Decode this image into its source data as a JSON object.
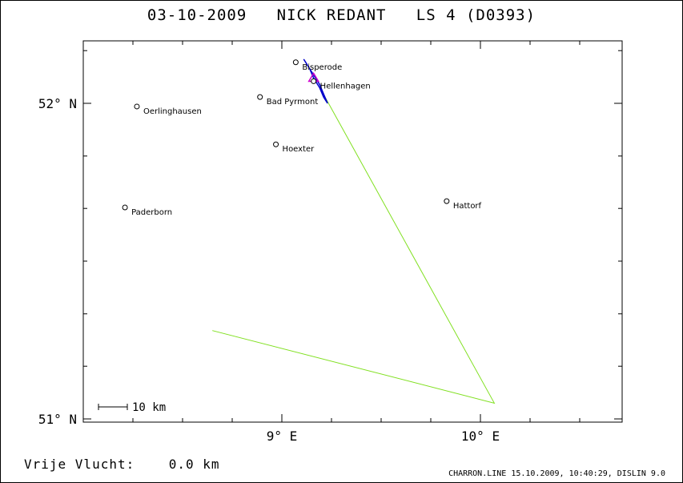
{
  "header": {
    "date": "03-10-2009",
    "pilot": "NICK REDANT",
    "glider": "LS 4 (D0393)"
  },
  "axes": {
    "x_ticks": [
      {
        "value": 9,
        "label": "9° E"
      },
      {
        "value": 10,
        "label": "10° E"
      }
    ],
    "y_ticks": [
      {
        "value": 52,
        "label": "52° N"
      },
      {
        "value": 51,
        "label": "51° N"
      }
    ],
    "x_range": [
      8.0,
      10.7
    ],
    "y_range": [
      51.0,
      52.2
    ]
  },
  "places": [
    {
      "name": "Oerlinghausen",
      "lon": 8.27,
      "lat": 51.99
    },
    {
      "name": "Paderborn",
      "lon": 8.21,
      "lat": 51.67
    },
    {
      "name": "Bad Pyrmont",
      "lon": 8.89,
      "lat": 52.02
    },
    {
      "name": "Hoexter",
      "lon": 8.97,
      "lat": 51.87
    },
    {
      "name": "Hattorf",
      "lon": 9.83,
      "lat": 51.69
    },
    {
      "name": "Bisperode",
      "lon": 9.07,
      "lat": 52.13
    },
    {
      "name": "Hellenhagen",
      "lon": 9.16,
      "lat": 52.07
    }
  ],
  "task_route": [
    [
      9.2,
      52.04
    ],
    [
      10.07,
      51.05
    ],
    [
      8.65,
      51.28
    ]
  ],
  "flight_track": [
    [
      9.11,
      52.14
    ],
    [
      9.13,
      52.12
    ],
    [
      9.15,
      52.1
    ],
    [
      9.17,
      52.08
    ],
    [
      9.19,
      52.06
    ],
    [
      9.21,
      52.03
    ],
    [
      9.23,
      52.0
    ],
    [
      9.21,
      52.02
    ],
    [
      9.19,
      52.05
    ],
    [
      9.16,
      52.08
    ],
    [
      9.14,
      52.11
    ],
    [
      9.12,
      52.13
    ]
  ],
  "colors": {
    "task": "#80e020",
    "track": "#0000cc",
    "marker": "#cc00cc"
  },
  "scale_bar": {
    "label": "10 km"
  },
  "footer": {
    "distance_label": "Vrije Vlucht:",
    "distance_value": "0.0 km",
    "credits": "CHARRON.LINE 15.10.2009, 10:40:29, DISLIN 9.0"
  }
}
